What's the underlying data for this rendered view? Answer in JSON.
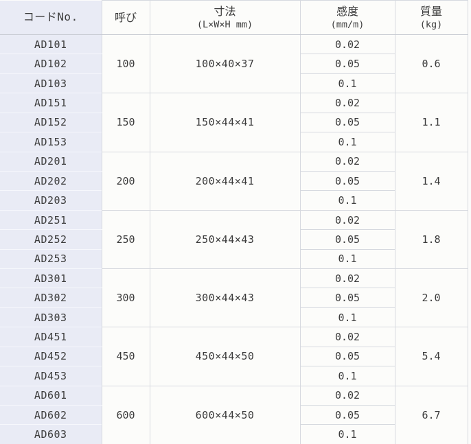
{
  "table": {
    "headers": [
      {
        "title": "コードNo.",
        "subtitle": ""
      },
      {
        "title": "呼び",
        "subtitle": ""
      },
      {
        "title": "寸法",
        "subtitle": "(L×W×H mm)"
      },
      {
        "title": "感度",
        "subtitle": "(mm/m)"
      },
      {
        "title": "質量",
        "subtitle": "(kg)"
      }
    ],
    "groups": [
      {
        "codes": [
          "AD101",
          "AD102",
          "AD103"
        ],
        "size": "100",
        "dimensions": "100×40×37",
        "sensitivities": [
          "0.02",
          "0.05",
          "0.1"
        ],
        "mass": "0.6"
      },
      {
        "codes": [
          "AD151",
          "AD152",
          "AD153"
        ],
        "size": "150",
        "dimensions": "150×44×41",
        "sensitivities": [
          "0.02",
          "0.05",
          "0.1"
        ],
        "mass": "1.1"
      },
      {
        "codes": [
          "AD201",
          "AD202",
          "AD203"
        ],
        "size": "200",
        "dimensions": "200×44×41",
        "sensitivities": [
          "0.02",
          "0.05",
          "0.1"
        ],
        "mass": "1.4"
      },
      {
        "codes": [
          "AD251",
          "AD252",
          "AD253"
        ],
        "size": "250",
        "dimensions": "250×44×43",
        "sensitivities": [
          "0.02",
          "0.05",
          "0.1"
        ],
        "mass": "1.8"
      },
      {
        "codes": [
          "AD301",
          "AD302",
          "AD303"
        ],
        "size": "300",
        "dimensions": "300×44×43",
        "sensitivities": [
          "0.02",
          "0.05",
          "0.1"
        ],
        "mass": "2.0"
      },
      {
        "codes": [
          "AD451",
          "AD452",
          "AD453"
        ],
        "size": "450",
        "dimensions": "450×44×50",
        "sensitivities": [
          "0.02",
          "0.05",
          "0.1"
        ],
        "mass": "5.4"
      },
      {
        "codes": [
          "AD601",
          "AD602",
          "AD603"
        ],
        "size": "600",
        "dimensions": "600×44×50",
        "sensitivities": [
          "0.02",
          "0.05",
          "0.1"
        ],
        "mass": "6.7"
      }
    ]
  },
  "colors": {
    "code_column_bg": "#e9ebf5",
    "cell_bg": "#fcfcfa",
    "border": "#d6d9df",
    "text": "#3b3b3b"
  }
}
